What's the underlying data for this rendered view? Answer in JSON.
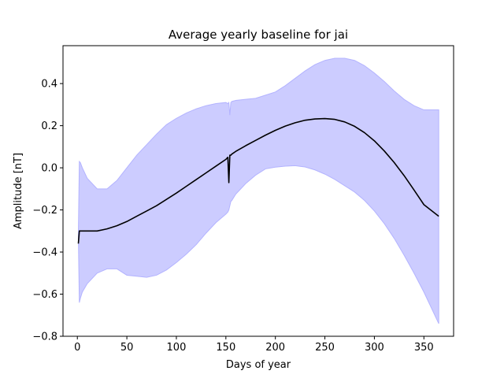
{
  "chart_data": {
    "type": "area",
    "title": "Average yearly baseline for jai",
    "xlabel": "Days of year",
    "ylabel": "Amplitude [nT]",
    "xlim": [
      -14.5,
      380
    ],
    "ylim": [
      -0.8,
      0.58
    ],
    "xticks": [
      0,
      50,
      100,
      150,
      200,
      250,
      300,
      350
    ],
    "yticks": [
      -0.8,
      -0.6,
      -0.4,
      -0.2,
      0.0,
      0.2,
      0.4
    ],
    "ytick_labels": [
      "−0.8",
      "−0.6",
      "−0.4",
      "−0.2",
      "0.0",
      "0.2",
      "0.4"
    ],
    "grid": false,
    "legend": "none",
    "colors": {
      "mean_line": "#000000",
      "band_fill": "#ccccff",
      "band_edge": "#b3b3ff"
    },
    "series": [
      {
        "kind": "line",
        "x": [
          1,
          2,
          3,
          5,
          10,
          20,
          30,
          40,
          50,
          60,
          70,
          80,
          90,
          100,
          110,
          120,
          130,
          140,
          150,
          152,
          153,
          154,
          155,
          156,
          160,
          170,
          180,
          190,
          200,
          210,
          220,
          230,
          240,
          250,
          260,
          270,
          280,
          290,
          300,
          310,
          320,
          330,
          340,
          350,
          365
        ],
        "y": [
          -0.36,
          -0.3,
          -0.3,
          -0.3,
          -0.3,
          -0.3,
          -0.29,
          -0.275,
          -0.255,
          -0.23,
          -0.205,
          -0.18,
          -0.15,
          -0.12,
          -0.088,
          -0.056,
          -0.024,
          0.008,
          0.04,
          0.05,
          -0.07,
          0.06,
          0.06,
          0.065,
          0.078,
          0.105,
          0.13,
          0.155,
          0.178,
          0.198,
          0.214,
          0.226,
          0.232,
          0.234,
          0.23,
          0.218,
          0.197,
          0.167,
          0.128,
          0.08,
          0.025,
          -0.037,
          -0.105,
          -0.175,
          -0.23
        ]
      },
      {
        "kind": "band",
        "x": [
          1,
          2,
          3,
          5,
          10,
          20,
          30,
          40,
          50,
          60,
          70,
          80,
          90,
          100,
          110,
          120,
          130,
          140,
          150,
          152,
          153,
          154,
          155,
          156,
          160,
          170,
          180,
          190,
          200,
          210,
          220,
          230,
          240,
          250,
          260,
          270,
          280,
          290,
          300,
          310,
          320,
          330,
          340,
          350,
          365
        ],
        "upper": [
          -0.32,
          0.03,
          0.025,
          0.0,
          -0.05,
          -0.1,
          -0.1,
          -0.06,
          0.0,
          0.06,
          0.11,
          0.16,
          0.205,
          0.235,
          0.26,
          0.28,
          0.295,
          0.305,
          0.31,
          0.305,
          0.31,
          0.25,
          0.31,
          0.315,
          0.32,
          0.325,
          0.33,
          0.345,
          0.36,
          0.39,
          0.425,
          0.46,
          0.49,
          0.51,
          0.52,
          0.52,
          0.51,
          0.485,
          0.45,
          0.41,
          0.365,
          0.325,
          0.295,
          0.275,
          0.275
        ],
        "lower": [
          -0.32,
          -0.64,
          -0.62,
          -0.59,
          -0.55,
          -0.5,
          -0.48,
          -0.48,
          -0.51,
          -0.515,
          -0.52,
          -0.51,
          -0.485,
          -0.45,
          -0.41,
          -0.365,
          -0.31,
          -0.26,
          -0.22,
          -0.21,
          -0.2,
          -0.18,
          -0.16,
          -0.155,
          -0.125,
          -0.075,
          -0.035,
          -0.005,
          0.003,
          0.008,
          0.01,
          0.004,
          -0.01,
          -0.03,
          -0.055,
          -0.085,
          -0.115,
          -0.155,
          -0.205,
          -0.265,
          -0.335,
          -0.415,
          -0.5,
          -0.59,
          -0.74
        ]
      }
    ]
  }
}
